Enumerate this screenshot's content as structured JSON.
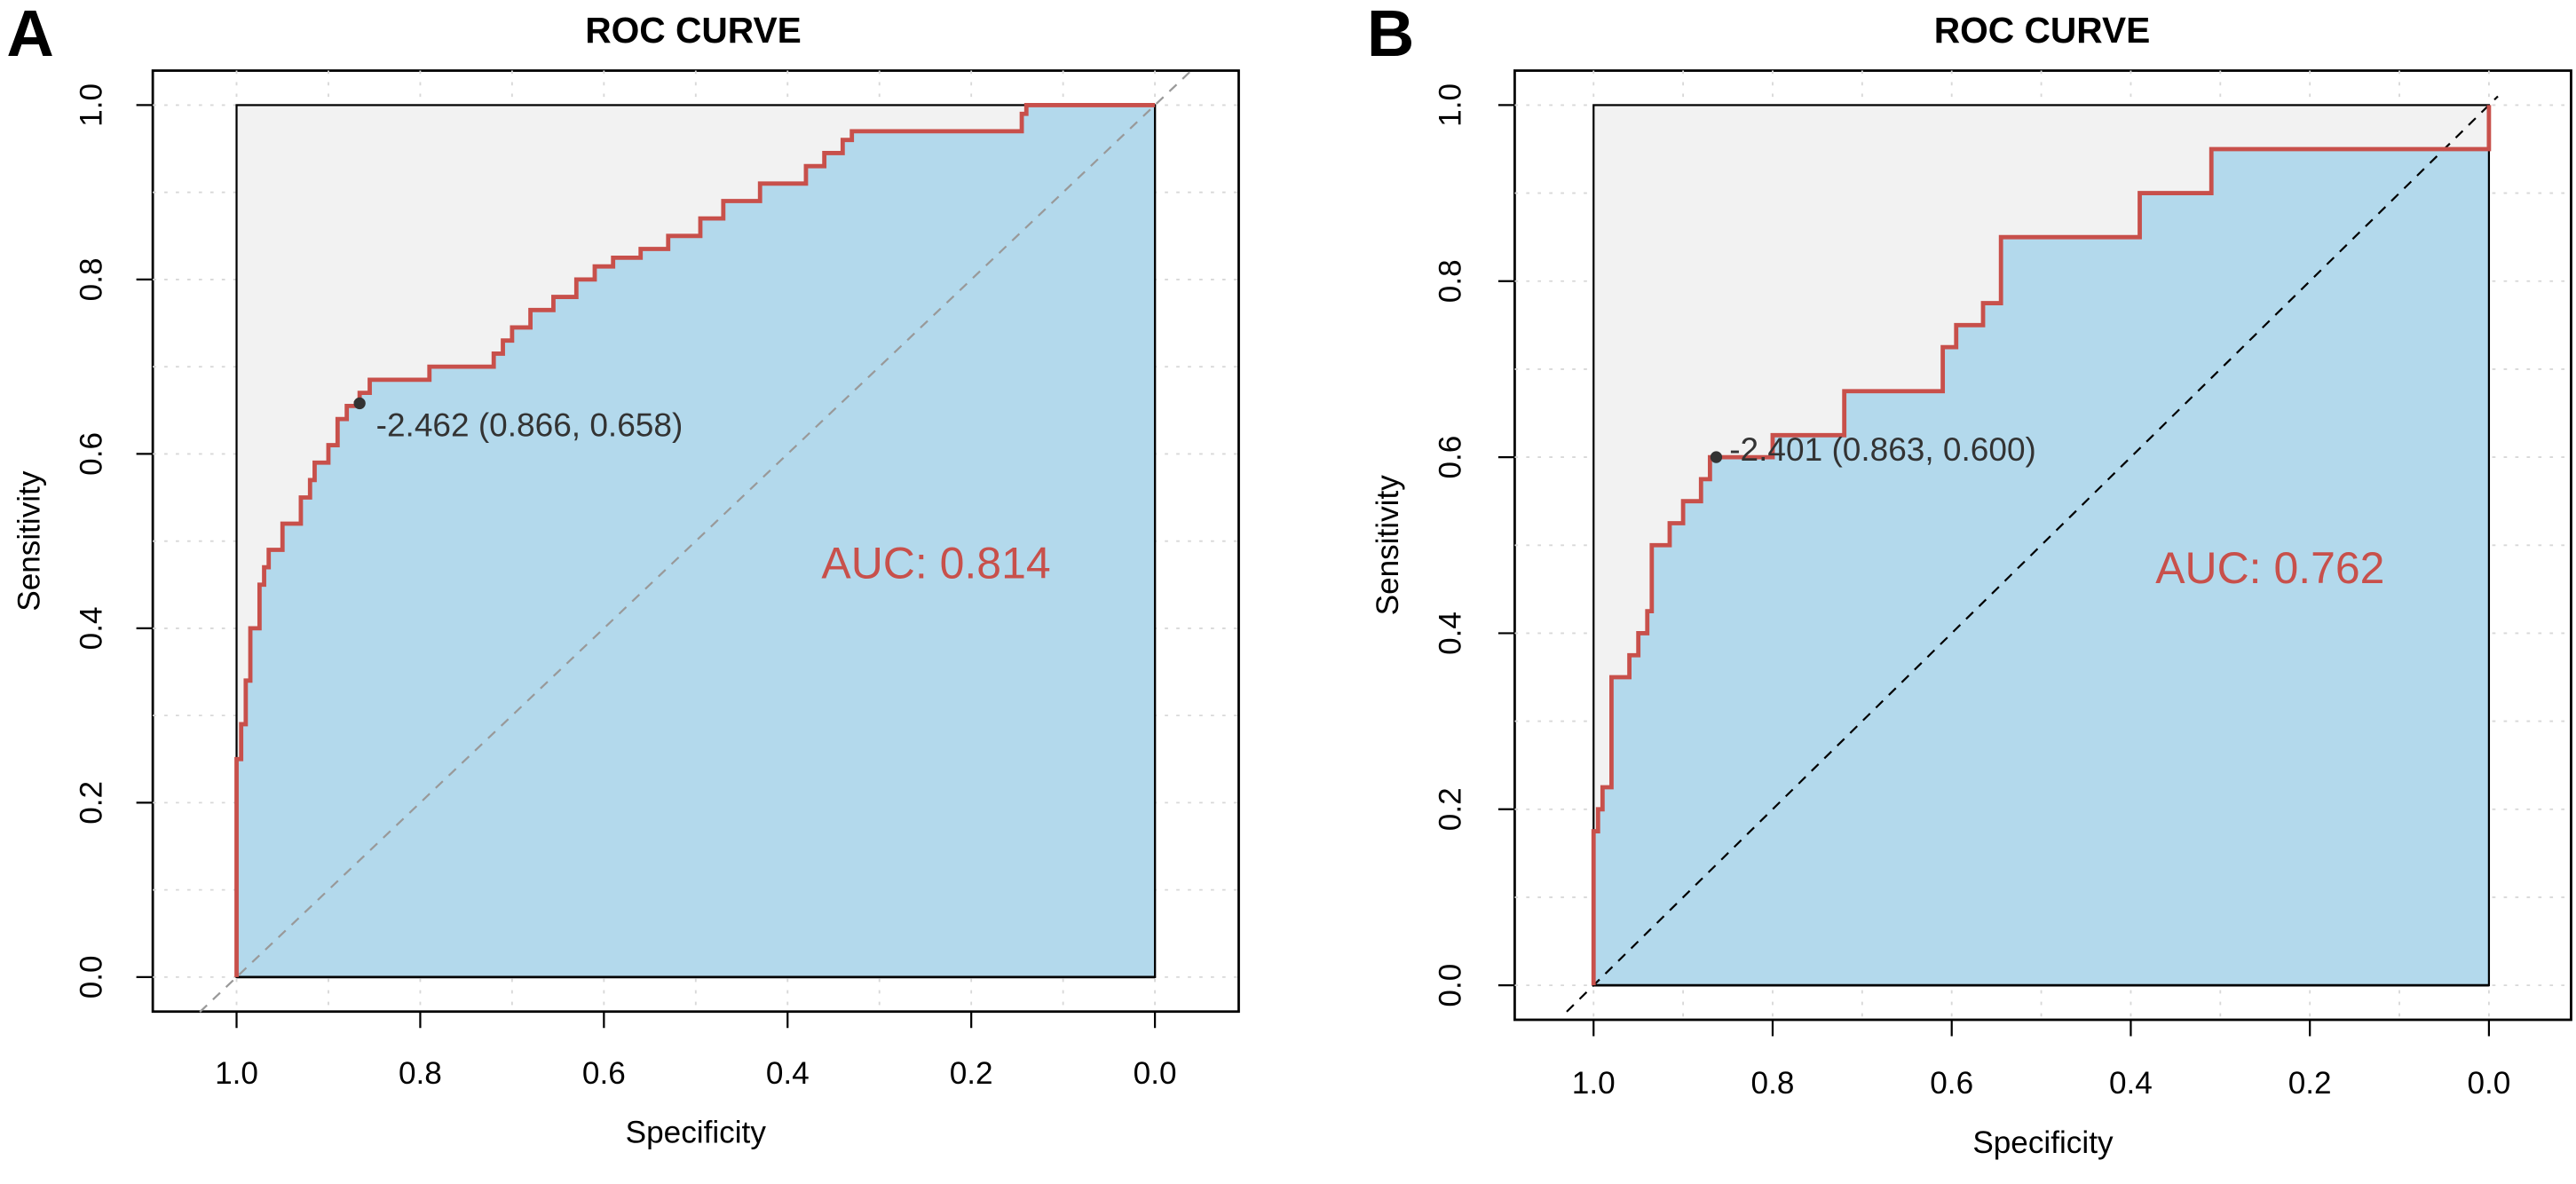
{
  "colors": {
    "curve": "#c8504b",
    "auc_fill": "#b3d9ec",
    "bg_fill": "#f2f2f2",
    "point": "#333333",
    "auc_text": "#c8504b"
  },
  "chart_data": [
    {
      "panel_label": "A",
      "type": "line",
      "title": "ROC CURVE",
      "xlabel": "Specificity",
      "ylabel": "Sensitivity",
      "xlim": [
        1.0,
        0.0
      ],
      "ylim": [
        0.0,
        1.0
      ],
      "x_ticks": [
        "1.0",
        "0.8",
        "0.6",
        "0.4",
        "0.2",
        "0.0"
      ],
      "y_ticks": [
        "0.0",
        "0.2",
        "0.4",
        "0.6",
        "0.8",
        "1.0"
      ],
      "grid": true,
      "diagonal_style": "gray-dashed",
      "auc_label": "AUC: 0.814",
      "threshold_label": "-2.462 (0.866, 0.658)",
      "threshold_point": {
        "specificity": 0.866,
        "sensitivity": 0.658
      },
      "series": [
        {
          "name": "ROC",
          "specificity": [
            1,
            1,
            0.995,
            0.99,
            0.985,
            0.975,
            0.97,
            0.965,
            0.95,
            0.93,
            0.92,
            0.915,
            0.9,
            0.89,
            0.88,
            0.87,
            0.866,
            0.855,
            0.8,
            0.79,
            0.72,
            0.71,
            0.7,
            0.68,
            0.655,
            0.63,
            0.61,
            0.59,
            0.56,
            0.53,
            0.495,
            0.47,
            0.44,
            0.43,
            0.38,
            0.36,
            0.34,
            0.33,
            0.145,
            0.14,
            0
          ],
          "sensitivity": [
            0,
            0.15,
            0.25,
            0.29,
            0.34,
            0.4,
            0.45,
            0.47,
            0.49,
            0.52,
            0.55,
            0.57,
            0.59,
            0.61,
            0.64,
            0.655,
            0.658,
            0.67,
            0.685,
            0.685,
            0.7,
            0.715,
            0.73,
            0.745,
            0.765,
            0.78,
            0.8,
            0.815,
            0.825,
            0.835,
            0.85,
            0.87,
            0.89,
            0.89,
            0.91,
            0.93,
            0.945,
            0.96,
            0.97,
            0.99,
            1.0
          ]
        }
      ]
    },
    {
      "panel_label": "B",
      "type": "line",
      "title": "ROC CURVE",
      "xlabel": "Specificity",
      "ylabel": "Sensitivity",
      "xlim": [
        1.0,
        0.0
      ],
      "ylim": [
        0.0,
        1.0
      ],
      "x_ticks": [
        "1.0",
        "0.8",
        "0.6",
        "0.4",
        "0.2",
        "0.0"
      ],
      "y_ticks": [
        "0.0",
        "0.2",
        "0.4",
        "0.6",
        "0.8",
        "1.0"
      ],
      "grid": true,
      "diagonal_style": "black-dashed",
      "auc_label": "AUC: 0.762",
      "threshold_label": "-2.401 (0.863, 0.600)",
      "threshold_point": {
        "specificity": 0.863,
        "sensitivity": 0.6
      },
      "series": [
        {
          "name": "ROC",
          "specificity": [
            1,
            1,
            0.995,
            0.99,
            0.98,
            0.98,
            0.96,
            0.95,
            0.94,
            0.935,
            0.935,
            0.915,
            0.9,
            0.88,
            0.87,
            0.863,
            0.8,
            0.8,
            0.72,
            0.72,
            0.685,
            0.61,
            0.61,
            0.595,
            0.565,
            0.545,
            0.545,
            0.5,
            0.39,
            0.39,
            0.31,
            0.31,
            0.28,
            0,
            0
          ],
          "sensitivity": [
            0,
            0.125,
            0.175,
            0.2,
            0.225,
            0.325,
            0.35,
            0.375,
            0.4,
            0.425,
            0.475,
            0.5,
            0.525,
            0.55,
            0.575,
            0.6,
            0.6,
            0.625,
            0.625,
            0.65,
            0.675,
            0.675,
            0.7,
            0.725,
            0.75,
            0.775,
            0.825,
            0.85,
            0.85,
            0.9,
            0.9,
            0.925,
            0.95,
            0.95,
            1.0
          ]
        }
      ]
    }
  ]
}
